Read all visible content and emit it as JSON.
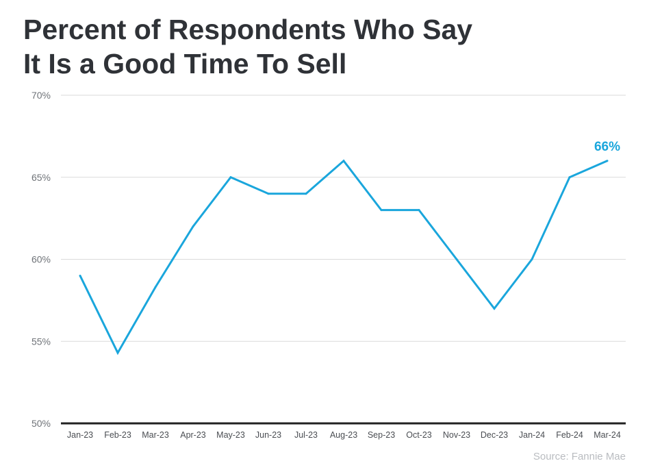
{
  "chart_data": {
    "type": "line",
    "title_lines": [
      "Percent of Respondents Who Say",
      "It Is a Good Time To Sell"
    ],
    "xlabel": "",
    "ylabel": "",
    "categories": [
      "Jan-23",
      "Feb-23",
      "Mar-23",
      "Apr-23",
      "May-23",
      "Jun-23",
      "Jul-23",
      "Aug-23",
      "Sep-23",
      "Oct-23",
      "Nov-23",
      "Dec-23",
      "Jan-24",
      "Feb-24",
      "Mar-24"
    ],
    "series": [
      {
        "values": [
          59,
          54.3,
          58.3,
          62,
          65,
          64,
          64,
          66,
          63,
          63,
          60,
          57,
          60,
          65,
          66
        ],
        "color": "#1aa6dc"
      }
    ],
    "ylim": [
      50,
      70
    ],
    "yticks": [
      50,
      55,
      60,
      65,
      70
    ],
    "ytick_labels": [
      "50%",
      "55%",
      "60%",
      "65%",
      "70%"
    ],
    "grid": true,
    "annotation": {
      "category": "Mar-24",
      "value": 66,
      "label": "66%"
    },
    "source": "Source: Fannie Mae"
  }
}
